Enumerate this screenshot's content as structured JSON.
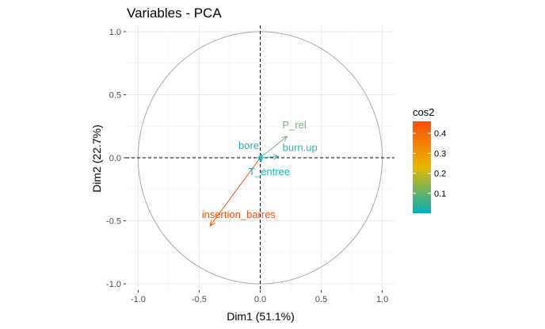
{
  "chart_data": {
    "type": "scatter",
    "title": "Variables - PCA",
    "xlabel": "Dim1 (51.1%)",
    "ylabel": "Dim2 (22.7%)",
    "xlim": [
      -1.1,
      1.1
    ],
    "ylim": [
      -1.05,
      1.05
    ],
    "xticks": [
      -1.0,
      -0.5,
      0.0,
      0.5,
      1.0
    ],
    "yticks": [
      -1.0,
      -0.5,
      0.0,
      0.5,
      1.0
    ],
    "xtick_labels": [
      "-1.0",
      "-0.5",
      "0.0",
      "0.5",
      "1.0"
    ],
    "ytick_labels": [
      "-1.0",
      "-0.5",
      "0.0",
      "0.5",
      "1.0"
    ],
    "grid": true,
    "unit_circle": true,
    "variables": [
      {
        "name": "P_rel",
        "x": 0.22,
        "y": 0.17,
        "cos2": 0.08,
        "color": "#7db07d"
      },
      {
        "name": "bore",
        "x": 0.01,
        "y": 0.03,
        "cos2": 0.01,
        "color": "#1cb5b5"
      },
      {
        "name": "burn.up",
        "x": 0.15,
        "y": 0.01,
        "cos2": 0.02,
        "color": "#33b3a8"
      },
      {
        "name": "T_entree",
        "x": 0.01,
        "y": -0.03,
        "cos2": 0.01,
        "color": "#1cb5b5"
      },
      {
        "name": "insertion_barres",
        "x": -0.41,
        "y": -0.54,
        "cos2": 0.45,
        "color": "#f2500d"
      }
    ],
    "legend": {
      "title": "cos2",
      "position": "right",
      "ticks": [
        "0.1",
        "0.2",
        "0.3",
        "0.4"
      ],
      "tick_values": [
        0.1,
        0.2,
        0.3,
        0.4
      ],
      "range": [
        0.0,
        0.46
      ],
      "gradient": [
        "#00AFBB",
        "#E7B800",
        "#FC4E07"
      ]
    }
  }
}
